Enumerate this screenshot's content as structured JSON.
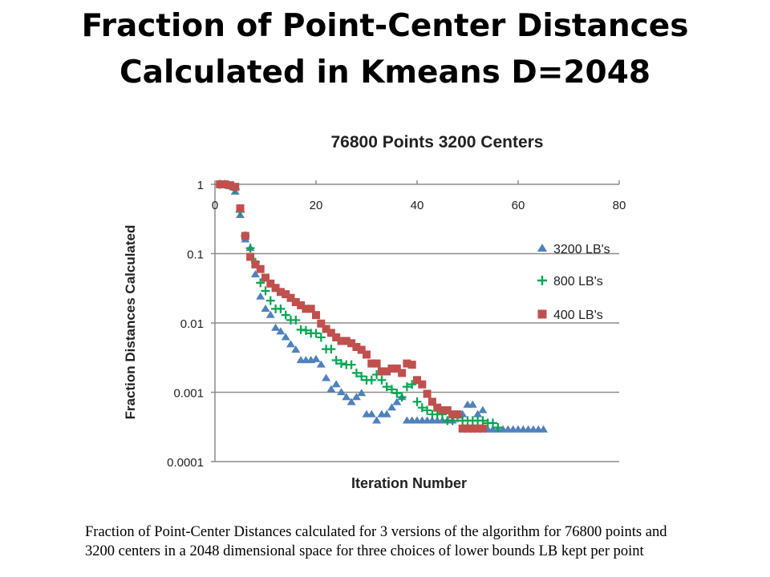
{
  "slide": {
    "title_line1": "Fraction of Point-Center Distances",
    "title_line2": "Calculated in Kmeans D=2048",
    "caption_line1": "Fraction of Point-Center Distances calculated for 3 versions of the algorithm for 76800 points and",
    "caption_line2": "3200 centers in a 2048 dimensional space for three choices of lower bounds LB kept per point"
  },
  "chart_data": {
    "type": "scatter",
    "title": "76800 Points 3200 Centers",
    "xlabel": "Iteration Number",
    "ylabel": "Fraction Distances Calculated",
    "xlim": [
      0,
      80
    ],
    "ylim": [
      0.0001,
      1
    ],
    "yscale": "log",
    "x_ticks": [
      0,
      20,
      40,
      60,
      80
    ],
    "y_ticks": [
      {
        "value": 1,
        "label": "1"
      },
      {
        "value": 0.1,
        "label": "0.1"
      },
      {
        "value": 0.01,
        "label": "0.01"
      },
      {
        "value": 0.001,
        "label": "0.001"
      },
      {
        "value": 0.0001,
        "label": "0.0001"
      }
    ],
    "grid": "horizontal",
    "legend_position": "right",
    "series": [
      {
        "name": "3200 LB's",
        "marker": "triangle",
        "color": "#4f81bd",
        "points": [
          [
            1,
            1.0
          ],
          [
            2,
            1.0
          ],
          [
            3,
            0.95
          ],
          [
            4,
            0.78
          ],
          [
            5,
            0.36
          ],
          [
            6,
            0.16
          ],
          [
            7,
            0.12
          ],
          [
            8,
            0.05
          ],
          [
            9,
            0.024
          ],
          [
            10,
            0.016
          ],
          [
            11,
            0.013
          ],
          [
            12,
            0.0085
          ],
          [
            13,
            0.0075
          ],
          [
            14,
            0.0062
          ],
          [
            15,
            0.0049
          ],
          [
            16,
            0.0041
          ],
          [
            17,
            0.0029
          ],
          [
            18,
            0.0029
          ],
          [
            19,
            0.0029
          ],
          [
            20,
            0.003
          ],
          [
            21,
            0.0025
          ],
          [
            22,
            0.0016
          ],
          [
            23,
            0.0011
          ],
          [
            24,
            0.0013
          ],
          [
            25,
            0.001
          ],
          [
            26,
            0.00085
          ],
          [
            27,
            0.00072
          ],
          [
            28,
            0.00085
          ],
          [
            29,
            0.00097
          ],
          [
            30,
            0.00048
          ],
          [
            31,
            0.00048
          ],
          [
            32,
            0.00039
          ],
          [
            33,
            0.00048
          ],
          [
            34,
            0.00048
          ],
          [
            35,
            0.0006
          ],
          [
            36,
            0.00072
          ],
          [
            37,
            0.00085
          ],
          [
            38,
            0.00039
          ],
          [
            39,
            0.00039
          ],
          [
            40,
            0.00039
          ],
          [
            41,
            0.00039
          ],
          [
            42,
            0.00039
          ],
          [
            43,
            0.00039
          ],
          [
            44,
            0.00039
          ],
          [
            45,
            0.00039
          ],
          [
            46,
            0.00039
          ],
          [
            47,
            0.00039
          ],
          [
            48,
            0.00048
          ],
          [
            49,
            0.00048
          ],
          [
            50,
            0.00066
          ],
          [
            51,
            0.00066
          ],
          [
            52,
            0.00048
          ],
          [
            53,
            0.00055
          ],
          [
            54,
            0.00029
          ],
          [
            55,
            0.00029
          ],
          [
            56,
            0.00029
          ],
          [
            57,
            0.00029
          ],
          [
            58,
            0.00029
          ],
          [
            59,
            0.00029
          ],
          [
            60,
            0.00029
          ],
          [
            61,
            0.00029
          ],
          [
            62,
            0.00029
          ],
          [
            63,
            0.00029
          ],
          [
            64,
            0.00029
          ],
          [
            65,
            0.00029
          ]
        ]
      },
      {
        "name": "800 LB's",
        "marker": "plus",
        "color": "#00a651",
        "points": [
          [
            1,
            1.0
          ],
          [
            2,
            1.0
          ],
          [
            3,
            0.95
          ],
          [
            4,
            0.85
          ],
          [
            5,
            0.4
          ],
          [
            6,
            0.18
          ],
          [
            7,
            0.12
          ],
          [
            8,
            0.075
          ],
          [
            9,
            0.038
          ],
          [
            10,
            0.029
          ],
          [
            11,
            0.021
          ],
          [
            12,
            0.016
          ],
          [
            13,
            0.016
          ],
          [
            14,
            0.013
          ],
          [
            15,
            0.011
          ],
          [
            16,
            0.011
          ],
          [
            17,
            0.008
          ],
          [
            18,
            0.0078
          ],
          [
            19,
            0.0071
          ],
          [
            20,
            0.0071
          ],
          [
            21,
            0.0062
          ],
          [
            22,
            0.0042
          ],
          [
            23,
            0.0042
          ],
          [
            24,
            0.0029
          ],
          [
            25,
            0.0026
          ],
          [
            26,
            0.0025
          ],
          [
            27,
            0.0025
          ],
          [
            28,
            0.0019
          ],
          [
            29,
            0.0017
          ],
          [
            30,
            0.0015
          ],
          [
            31,
            0.0015
          ],
          [
            32,
            0.0018
          ],
          [
            33,
            0.0015
          ],
          [
            34,
            0.0012
          ],
          [
            35,
            0.0011
          ],
          [
            36,
            0.00097
          ],
          [
            37,
            0.00085
          ],
          [
            38,
            0.0012
          ],
          [
            39,
            0.0013
          ],
          [
            40,
            0.00073
          ],
          [
            41,
            0.0006
          ],
          [
            42,
            0.00055
          ],
          [
            43,
            0.00048
          ],
          [
            44,
            0.00048
          ],
          [
            45,
            0.00048
          ],
          [
            46,
            0.00039
          ],
          [
            47,
            0.00039
          ],
          [
            48,
            0.00043
          ],
          [
            49,
            0.00039
          ],
          [
            50,
            0.00039
          ],
          [
            51,
            0.00039
          ],
          [
            52,
            0.00039
          ],
          [
            53,
            0.00039
          ],
          [
            54,
            0.00036
          ],
          [
            55,
            0.00036
          ],
          [
            56,
            0.00031
          ]
        ]
      },
      {
        "name": "400 LB's",
        "marker": "square",
        "color": "#c0504d",
        "points": [
          [
            1,
            1.0
          ],
          [
            2,
            1.0
          ],
          [
            3,
            0.97
          ],
          [
            4,
            0.92
          ],
          [
            5,
            0.45
          ],
          [
            6,
            0.18
          ],
          [
            7,
            0.09
          ],
          [
            8,
            0.07
          ],
          [
            9,
            0.06
          ],
          [
            10,
            0.045
          ],
          [
            11,
            0.037
          ],
          [
            12,
            0.032
          ],
          [
            13,
            0.028
          ],
          [
            14,
            0.026
          ],
          [
            15,
            0.023
          ],
          [
            16,
            0.02
          ],
          [
            17,
            0.018
          ],
          [
            18,
            0.016
          ],
          [
            19,
            0.016
          ],
          [
            20,
            0.013
          ],
          [
            21,
            0.0098
          ],
          [
            22,
            0.0082
          ],
          [
            23,
            0.0072
          ],
          [
            24,
            0.0062
          ],
          [
            25,
            0.0055
          ],
          [
            26,
            0.0055
          ],
          [
            27,
            0.0051
          ],
          [
            28,
            0.0045
          ],
          [
            29,
            0.0041
          ],
          [
            30,
            0.0035
          ],
          [
            31,
            0.0026
          ],
          [
            32,
            0.0026
          ],
          [
            33,
            0.002
          ],
          [
            34,
            0.002
          ],
          [
            35,
            0.0022
          ],
          [
            36,
            0.0022
          ],
          [
            37,
            0.0019
          ],
          [
            38,
            0.0026
          ],
          [
            39,
            0.0025
          ],
          [
            40,
            0.0015
          ],
          [
            41,
            0.0013
          ],
          [
            42,
            0.00095
          ],
          [
            43,
            0.00073
          ],
          [
            44,
            0.0006
          ],
          [
            45,
            0.00055
          ],
          [
            46,
            0.00055
          ],
          [
            47,
            0.00048
          ],
          [
            48,
            0.00048
          ],
          [
            49,
            0.0003
          ],
          [
            50,
            0.0003
          ],
          [
            51,
            0.0003
          ],
          [
            52,
            0.0003
          ],
          [
            53,
            0.0003
          ]
        ]
      }
    ]
  }
}
